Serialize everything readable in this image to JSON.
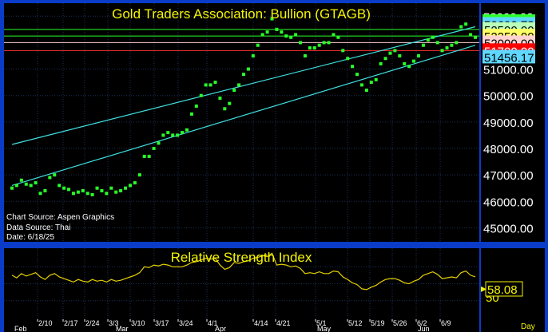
{
  "title": "Gold Traders Association: Bullion (GTAGB)",
  "notes": {
    "chart_source": "Chart Source: Aspen Graphics",
    "data_source": "Data Source: Thai",
    "date": "Date: 6/18/25"
  },
  "rsi": {
    "title": "Relative Strength Index",
    "value_label": "58.08",
    "tick_label": "50"
  },
  "day_label": "Day",
  "chart_data": [
    {
      "type": "scatter",
      "title": "Gold Traders Association: Bullion (GTAGB)",
      "xlabel": "",
      "ylabel": "",
      "ylim": [
        44500,
        53400
      ],
      "y_ticks": [
        45000,
        46000,
        47000,
        48000,
        49000,
        50000,
        51000,
        52000,
        53000
      ],
      "y_tick_labels": [
        "45000.00",
        "46000.00",
        "47000.00",
        "48000.00",
        "49000.00",
        "50000.00",
        "51000.00",
        "52000.00",
        "53000.00"
      ],
      "date_ticks": [
        "2/10",
        "2/17",
        "2/24",
        "3/3",
        "3/10",
        "3/17",
        "3/24",
        "4/1",
        "4/14",
        "4/21",
        "5/1",
        "5/12",
        "5/19",
        "5/26",
        "6/2",
        "6/9"
      ],
      "month_labels": [
        "Feb",
        "Mar",
        "Apr",
        "May",
        "Jun"
      ],
      "series": [
        {
          "color": "#2aff2a",
          "values": [
            46500,
            46600,
            46800,
            46650,
            46600,
            46700,
            46300,
            46400,
            46900,
            47000,
            46600,
            46500,
            46450,
            46300,
            46350,
            46400,
            46300,
            46250,
            46500,
            46400,
            46300,
            46500,
            46350,
            46400,
            46500,
            46600,
            46700,
            47000,
            47700,
            47700,
            48000,
            48200,
            48500,
            48600,
            48500,
            48500,
            48600,
            48700,
            49300,
            49600,
            50000,
            50400,
            50400,
            50500,
            49900,
            49500,
            49700,
            50200,
            50400,
            50800,
            51000,
            51500,
            51900,
            52300,
            52400,
            52900,
            52500,
            52400,
            52250,
            52200,
            52300,
            52000,
            51500,
            51800,
            51800,
            51900,
            52000,
            52000,
            52300,
            52200,
            51700,
            51400,
            51100,
            50800,
            50400,
            50200,
            50500,
            50600,
            51200,
            51400,
            51600,
            51700,
            51500,
            51200,
            51100,
            51300,
            51500,
            51900,
            52100,
            52200,
            52000,
            51700,
            51800,
            51900,
            52000,
            52600,
            52700,
            52300,
            52200
          ]
        }
      ],
      "channel_lines": [
        {
          "name": "upper",
          "color": "#40e0e0",
          "from_index": 0,
          "from_value": 48150,
          "to_index": 98,
          "to_value": 52600
        },
        {
          "name": "lower",
          "color": "#40e0e0",
          "from_index": 0,
          "from_value": 46600,
          "to_index": 98,
          "to_value": 51900
        }
      ],
      "horizontal_levels": [
        {
          "value": 52800,
          "label": "52800.00",
          "line_color": null,
          "label_bg": "#2aff2a",
          "label_fg": "#000000"
        },
        {
          "value": 52692.73,
          "label": "52692.73",
          "line_color": null,
          "label_bg": "#5fd7ff",
          "label_fg": "#000000"
        },
        {
          "value": 52500,
          "label": "52500.00",
          "line_color": "#2aff2a",
          "label_bg": "#b9ffb9",
          "label_fg": "#000000"
        },
        {
          "value": 52250,
          "label": "52250.00",
          "line_color": "#2aff2a",
          "label_bg": "#ffff66",
          "label_fg": "#000000"
        },
        {
          "value": 52000,
          "label": "52000.00",
          "line_color": "#ffd2d2",
          "label_bg": "#ffd2d2",
          "label_fg": "#000000"
        },
        {
          "value": 51700,
          "label": "51700.00",
          "line_color": "#ff3030",
          "label_bg": "#ff0000",
          "label_fg": "#ffffff"
        },
        {
          "value": 51456.17,
          "label": "51456.17",
          "line_color": null,
          "label_bg": "#5fd7ff",
          "label_fg": "#000000"
        }
      ],
      "grid": true
    },
    {
      "type": "line",
      "title": "Relative Strength Index",
      "ylim": [
        10,
        90
      ],
      "y_ticks": [
        50
      ],
      "last_value": 58.08,
      "series": [
        {
          "color": "#e6d000",
          "values": [
            60,
            57,
            62,
            59,
            61,
            63,
            58,
            55,
            60,
            62,
            58,
            56,
            54,
            52,
            55,
            53,
            52,
            55,
            53,
            54,
            52,
            55,
            53,
            54,
            56,
            58,
            60,
            63,
            70,
            69,
            72,
            71,
            73,
            72,
            70,
            70,
            70,
            72,
            75,
            76,
            78,
            80,
            79,
            80,
            72,
            67,
            69,
            75,
            74,
            76,
            77,
            80,
            81,
            83,
            82,
            86,
            72,
            73,
            72,
            70,
            71,
            68,
            62,
            63,
            62,
            64,
            62,
            62,
            65,
            64,
            58,
            55,
            51,
            49,
            44,
            43,
            46,
            48,
            52,
            55,
            56,
            56,
            54,
            51,
            50,
            53,
            55,
            60,
            62,
            64,
            61,
            56,
            57,
            58,
            57,
            63,
            65,
            60,
            58.08
          ]
        }
      ]
    }
  ]
}
